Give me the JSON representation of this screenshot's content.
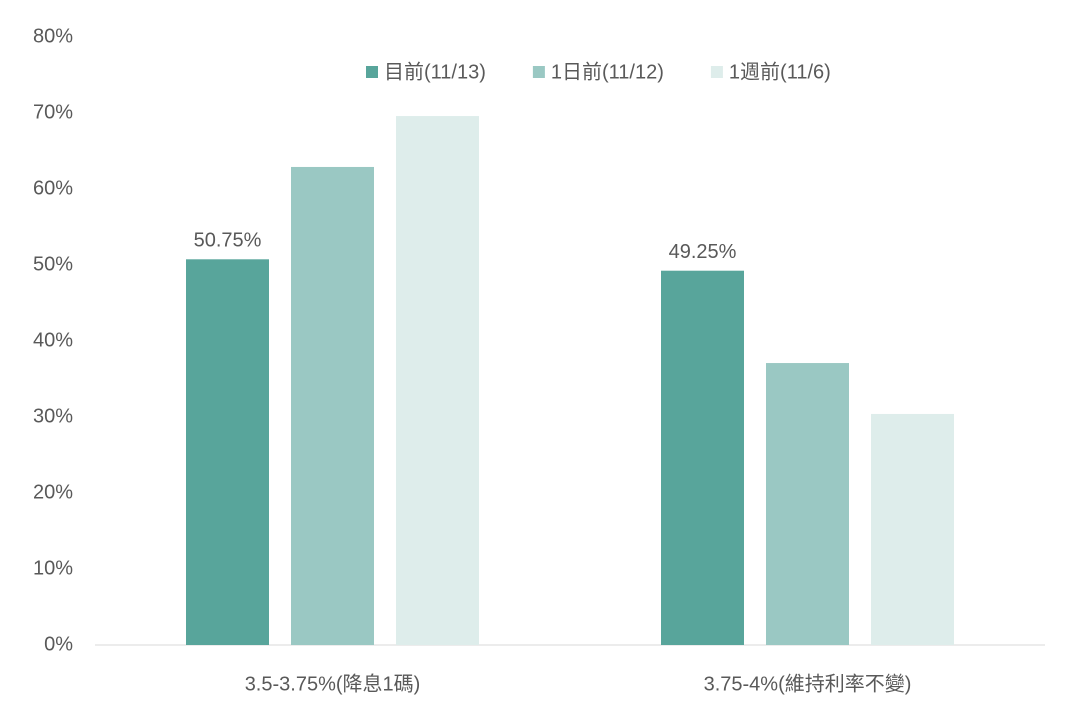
{
  "chart_data": {
    "type": "bar",
    "categories": [
      "3.5-3.75%(降息1碼)",
      "3.75-4%(維持利率不變)"
    ],
    "series": [
      {
        "name": "目前(11/13)",
        "color": "#58a59b",
        "values": [
          50.75,
          49.25
        ],
        "value_labels": [
          "50.75%",
          "49.25%"
        ]
      },
      {
        "name": "1日前(11/12)",
        "color": "#9ac8c3",
        "values": [
          62.9,
          37.1
        ]
      },
      {
        "name": "1週前(11/6)",
        "color": "#deedeb",
        "values": [
          69.6,
          30.4
        ]
      }
    ],
    "ylim": [
      0,
      80
    ],
    "yticks": [
      {
        "value": 0,
        "label": "0%"
      },
      {
        "value": 10,
        "label": "10%"
      },
      {
        "value": 20,
        "label": "20%"
      },
      {
        "value": 30,
        "label": "30%"
      },
      {
        "value": 40,
        "label": "40%"
      },
      {
        "value": 50,
        "label": "50%"
      },
      {
        "value": 60,
        "label": "60%"
      },
      {
        "value": 70,
        "label": "70%"
      },
      {
        "value": 80,
        "label": "80%"
      }
    ],
    "grid": false,
    "legend": "top"
  }
}
